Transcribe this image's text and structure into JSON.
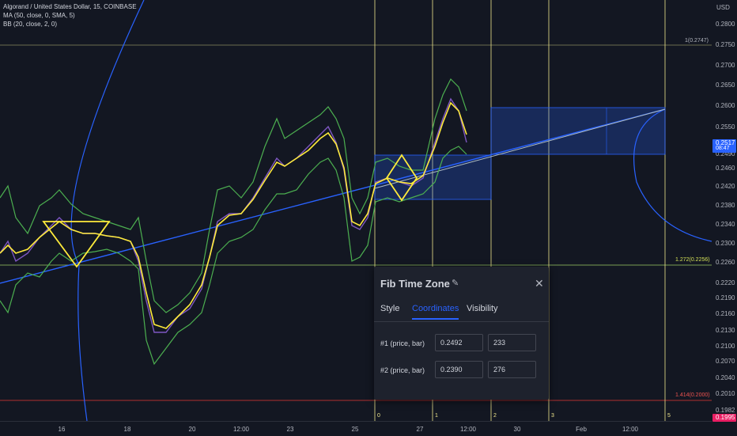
{
  "legend": {
    "symbol": "Algorand / United States Dollar, 15, COINBASE",
    "ma": "MA (50, close, 0, SMA, 5)",
    "bb": "BB (20, close, 2, 0)"
  },
  "price_axis": {
    "currency": "USD",
    "ticks": [
      "0.2800",
      "0.2750",
      "0.2700",
      "0.2650",
      "0.2600",
      "0.2550",
      "0.2490",
      "0.2460",
      "0.2420",
      "0.2380",
      "0.2340",
      "0.2300",
      "0.2260",
      "0.2220",
      "0.2190",
      "0.2160",
      "0.2130",
      "0.2100",
      "0.2070",
      "0.2040",
      "0.2010",
      "0.1982"
    ],
    "current_price": "0.2517",
    "countdown": "08:47",
    "lower_badge": "0.1995"
  },
  "time_axis": {
    "ticks": [
      "16",
      "18",
      "20",
      "12:00",
      "23",
      "25",
      "27",
      "12:00",
      "30",
      "Feb",
      "12:00"
    ]
  },
  "fib_levels": {
    "top": "1(0.2747)",
    "mid": "1.272(0.2256)",
    "low": "1.414(0.2000)"
  },
  "zone_numbers": [
    "0",
    "1",
    "2",
    "3",
    "5"
  ],
  "colors": {
    "background": "#131722",
    "fib_zone_line": "#f0e68c",
    "bb_band": "#4caf50",
    "ma_line": "#ffeb3b",
    "price_line": "#7e57c2",
    "trend_line": "#2962ff",
    "accent": "#2962ff",
    "current_price_badge": "#2962ff",
    "lower_badge": "#e91e63"
  },
  "dialog": {
    "title": "Fib Time Zone",
    "tabs": [
      "Style",
      "Coordinates",
      "Visibility"
    ],
    "active_tab": "Coordinates",
    "rows": [
      {
        "label": "#1 (price, bar)",
        "price": "0.2492",
        "bar": "233"
      },
      {
        "label": "#2 (price, bar)",
        "price": "0.2390",
        "bar": "276"
      }
    ]
  }
}
